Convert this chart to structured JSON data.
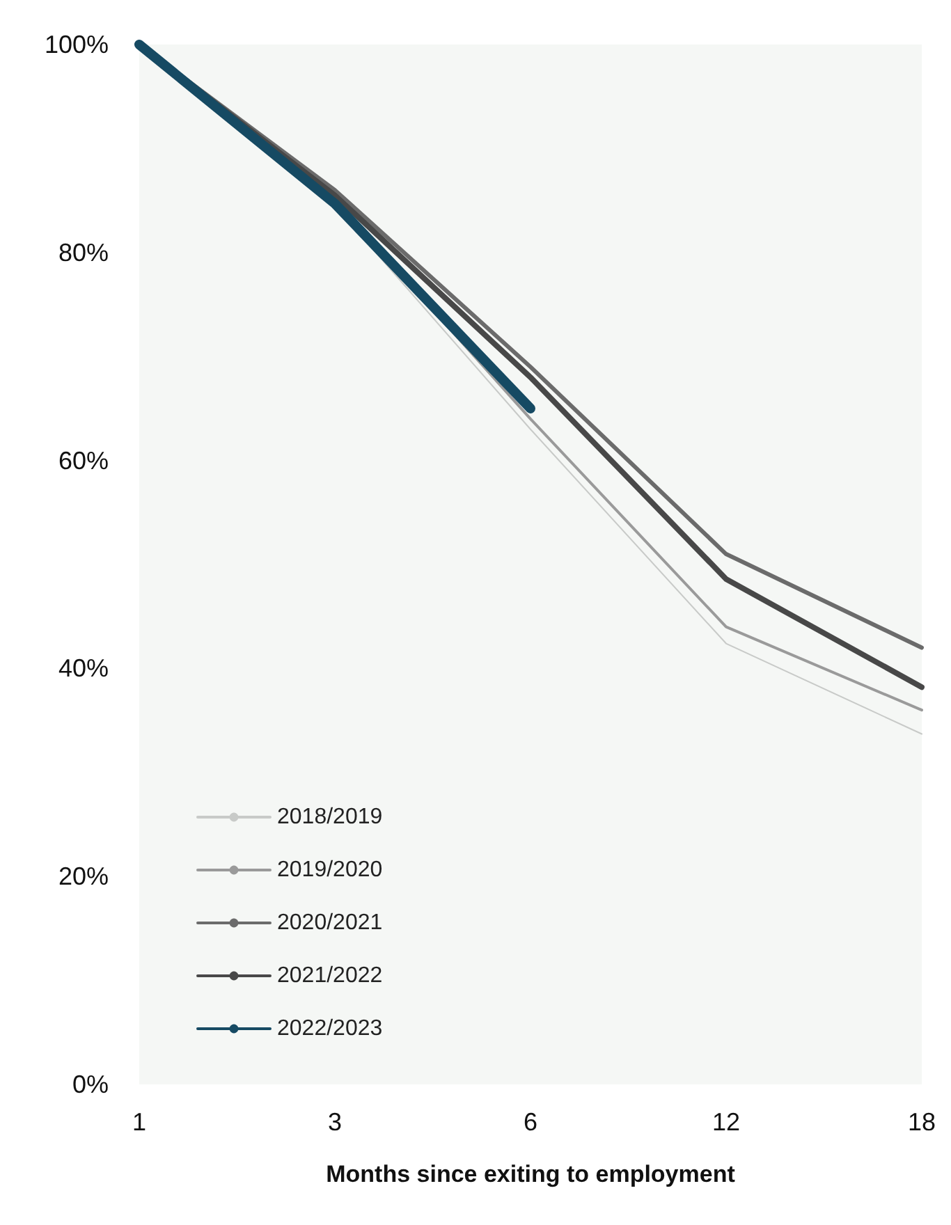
{
  "chart_data": {
    "type": "line",
    "xlabel": "Months since exiting to employment",
    "categories": [
      "1",
      "3",
      "6",
      "12",
      "18"
    ],
    "series": [
      {
        "name": "2018/2019",
        "color": "#c8cac8",
        "values": [
          100,
          84.5,
          63,
          42.4,
          33.7
        ]
      },
      {
        "name": "2019/2020",
        "color": "#9a9a9a",
        "values": [
          100,
          85,
          64,
          44,
          36
        ]
      },
      {
        "name": "2020/2021",
        "color": "#6b6b6b",
        "values": [
          100,
          86,
          69,
          51,
          42
        ]
      },
      {
        "name": "2021/2022",
        "color": "#484848",
        "values": [
          100,
          85.5,
          68,
          48.6,
          38.2
        ]
      },
      {
        "name": "2022/2023",
        "color": "#164a63",
        "values": [
          100,
          84.7,
          65,
          null,
          null
        ]
      }
    ],
    "ylim": [
      0,
      100
    ],
    "yticks": [
      {
        "value": 0,
        "label": "0%"
      },
      {
        "value": 20,
        "label": "20%"
      },
      {
        "value": 40,
        "label": "40%"
      },
      {
        "value": 60,
        "label": "60%"
      },
      {
        "value": 80,
        "label": "80%"
      },
      {
        "value": 100,
        "label": "100%"
      }
    ],
    "grid": false,
    "legend": "bottom left",
    "marker": "none",
    "line_style": "solid"
  }
}
